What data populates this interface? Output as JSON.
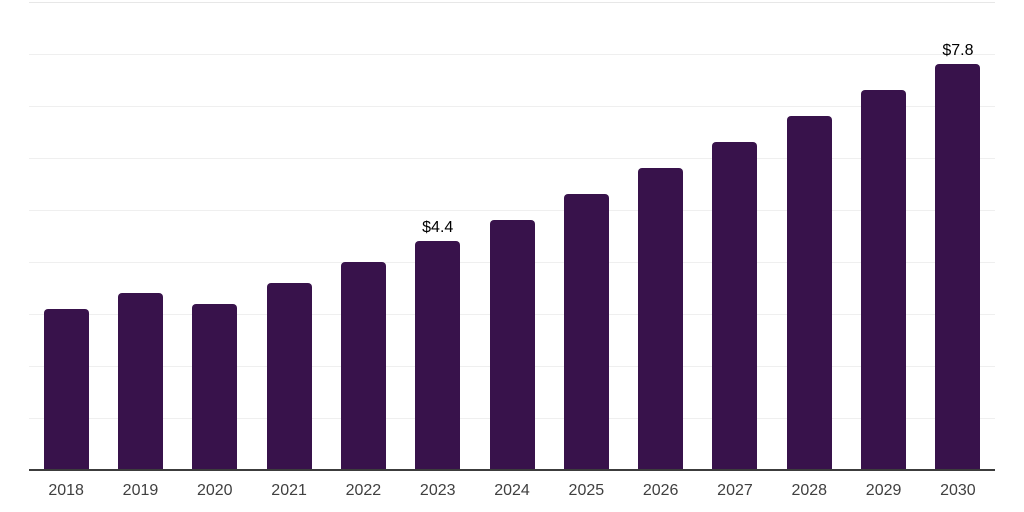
{
  "chart_data": {
    "type": "bar",
    "title": "",
    "xlabel": "",
    "ylabel": "",
    "categories": [
      "2018",
      "2019",
      "2020",
      "2021",
      "2022",
      "2023",
      "2024",
      "2025",
      "2026",
      "2027",
      "2028",
      "2029",
      "2030"
    ],
    "values": [
      3.1,
      3.4,
      3.2,
      3.6,
      4.0,
      4.4,
      4.8,
      5.3,
      5.8,
      6.3,
      6.8,
      7.3,
      7.8
    ],
    "data_labels": {
      "2023": "$4.4",
      "2030": "$7.8"
    },
    "value_prefix": "$",
    "ylim": [
      0,
      9
    ],
    "gridline_step": 1,
    "grid": "horizontal",
    "yaxis_tick_labels": "hidden",
    "legend": "none"
  },
  "colors": {
    "bar": "#38124B",
    "axis_line": "#3C3C3C",
    "gridline": "#EFEFEF",
    "gridline_top": "#E7E7E7",
    "tick_label": "#404040",
    "value_label": "#000000",
    "background": "#FFFFFF"
  }
}
